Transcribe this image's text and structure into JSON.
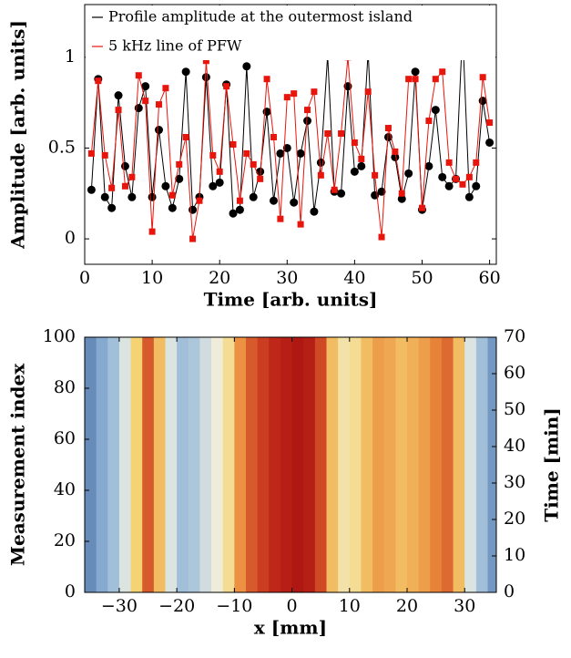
{
  "chart_data": [
    {
      "type": "line",
      "xlabel": "Time [arb. units]",
      "ylabel": "Amplitude [arb. units]",
      "x": [
        1,
        2,
        3,
        4,
        5,
        6,
        7,
        8,
        9,
        10,
        11,
        12,
        13,
        14,
        15,
        16,
        17,
        18,
        19,
        20,
        21,
        22,
        23,
        24,
        25,
        26,
        27,
        28,
        29,
        30,
        31,
        32,
        33,
        34,
        35,
        36,
        37,
        38,
        39,
        40,
        41,
        42,
        43,
        44,
        45,
        46,
        47,
        48,
        49,
        50,
        51,
        52,
        53,
        54,
        55,
        56,
        57,
        58,
        59,
        60
      ],
      "series": [
        {
          "name": "Profile amplitude at the outermost island",
          "color": "#000000",
          "marker": "circle",
          "values": [
            0.27,
            0.88,
            0.23,
            0.17,
            0.79,
            0.4,
            0.23,
            0.72,
            0.84,
            0.23,
            0.6,
            0.29,
            0.17,
            0.33,
            0.92,
            0.16,
            0.23,
            0.89,
            0.29,
            0.31,
            0.85,
            0.14,
            0.16,
            0.95,
            0.23,
            0.37,
            0.7,
            0.21,
            0.47,
            0.5,
            0.2,
            0.47,
            0.65,
            0.15,
            0.42,
            1.01,
            0.26,
            0.25,
            0.84,
            0.37,
            0.4,
            1.03,
            0.24,
            0.26,
            0.56,
            0.45,
            0.22,
            0.36,
            0.92,
            0.16,
            0.4,
            0.71,
            0.34,
            0.29,
            0.33,
            1.15,
            0.23,
            0.29,
            0.76,
            0.53
          ]
        },
        {
          "name": "5 kHz line of PFW",
          "color": "#e8150c",
          "marker": "square",
          "values": [
            0.47,
            0.87,
            0.46,
            0.28,
            0.71,
            0.29,
            0.34,
            0.9,
            0.76,
            0.04,
            0.74,
            0.83,
            0.24,
            0.41,
            0.56,
            0.0,
            0.21,
            0.98,
            0.46,
            0.37,
            0.84,
            0.52,
            0.21,
            0.47,
            0.41,
            0.33,
            0.88,
            0.56,
            0.11,
            0.78,
            0.8,
            0.08,
            0.71,
            0.81,
            0.35,
            0.58,
            0.27,
            0.58,
            1.0,
            0.53,
            0.44,
            0.81,
            0.35,
            0.01,
            0.61,
            0.48,
            0.25,
            0.88,
            0.88,
            0.17,
            0.65,
            0.88,
            0.92,
            0.42,
            0.33,
            0.3,
            0.34,
            0.42,
            0.89,
            0.64
          ]
        }
      ],
      "xlim": [
        0,
        61
      ],
      "ylim": [
        -0.14,
        1.29
      ],
      "xticks": [
        0,
        10,
        20,
        30,
        40,
        50,
        60
      ],
      "yticks": [
        0,
        0.5,
        1
      ],
      "legend": "upper left"
    },
    {
      "type": "heatmap",
      "xlabel": "x [mm]",
      "ylabel": "Measurement index",
      "y2label": "Time [min]",
      "x": [
        -36,
        -34,
        -32,
        -30,
        -28,
        -26,
        -24,
        -22,
        -20,
        -18,
        -16,
        -14,
        -12,
        -10,
        -8,
        -6,
        -4,
        -2,
        0,
        2,
        4,
        6,
        8,
        10,
        12,
        14,
        16,
        18,
        20,
        22,
        24,
        26,
        28,
        30,
        32,
        34
      ],
      "values": [
        0.1,
        0.15,
        0.2,
        0.3,
        0.5,
        0.75,
        0.55,
        0.3,
        0.2,
        0.22,
        0.28,
        0.35,
        0.45,
        0.65,
        0.75,
        0.8,
        0.85,
        0.9,
        0.95,
        0.9,
        0.78,
        0.55,
        0.42,
        0.45,
        0.55,
        0.62,
        0.6,
        0.55,
        0.58,
        0.62,
        0.68,
        0.72,
        0.55,
        0.3,
        0.2,
        0.12
      ],
      "colormap": [
        "#2a5190",
        "#8fb3d6",
        "#eef0e4",
        "#f6d372",
        "#ea8a3c",
        "#c22a1a",
        "#a50f0f"
      ],
      "xlim": [
        -36,
        35.5
      ],
      "ylim": [
        0,
        100
      ],
      "y2lim": [
        0,
        70
      ],
      "xticks": [
        {
          "value": -30,
          "label": "−30"
        },
        {
          "value": -20,
          "label": "−20"
        },
        {
          "value": -10,
          "label": "−10"
        },
        0,
        10,
        20,
        30
      ],
      "yticks": [
        0,
        20,
        40,
        60,
        80,
        100
      ],
      "y2ticks": [
        0,
        10,
        20,
        30,
        40,
        50,
        60,
        70
      ]
    }
  ]
}
